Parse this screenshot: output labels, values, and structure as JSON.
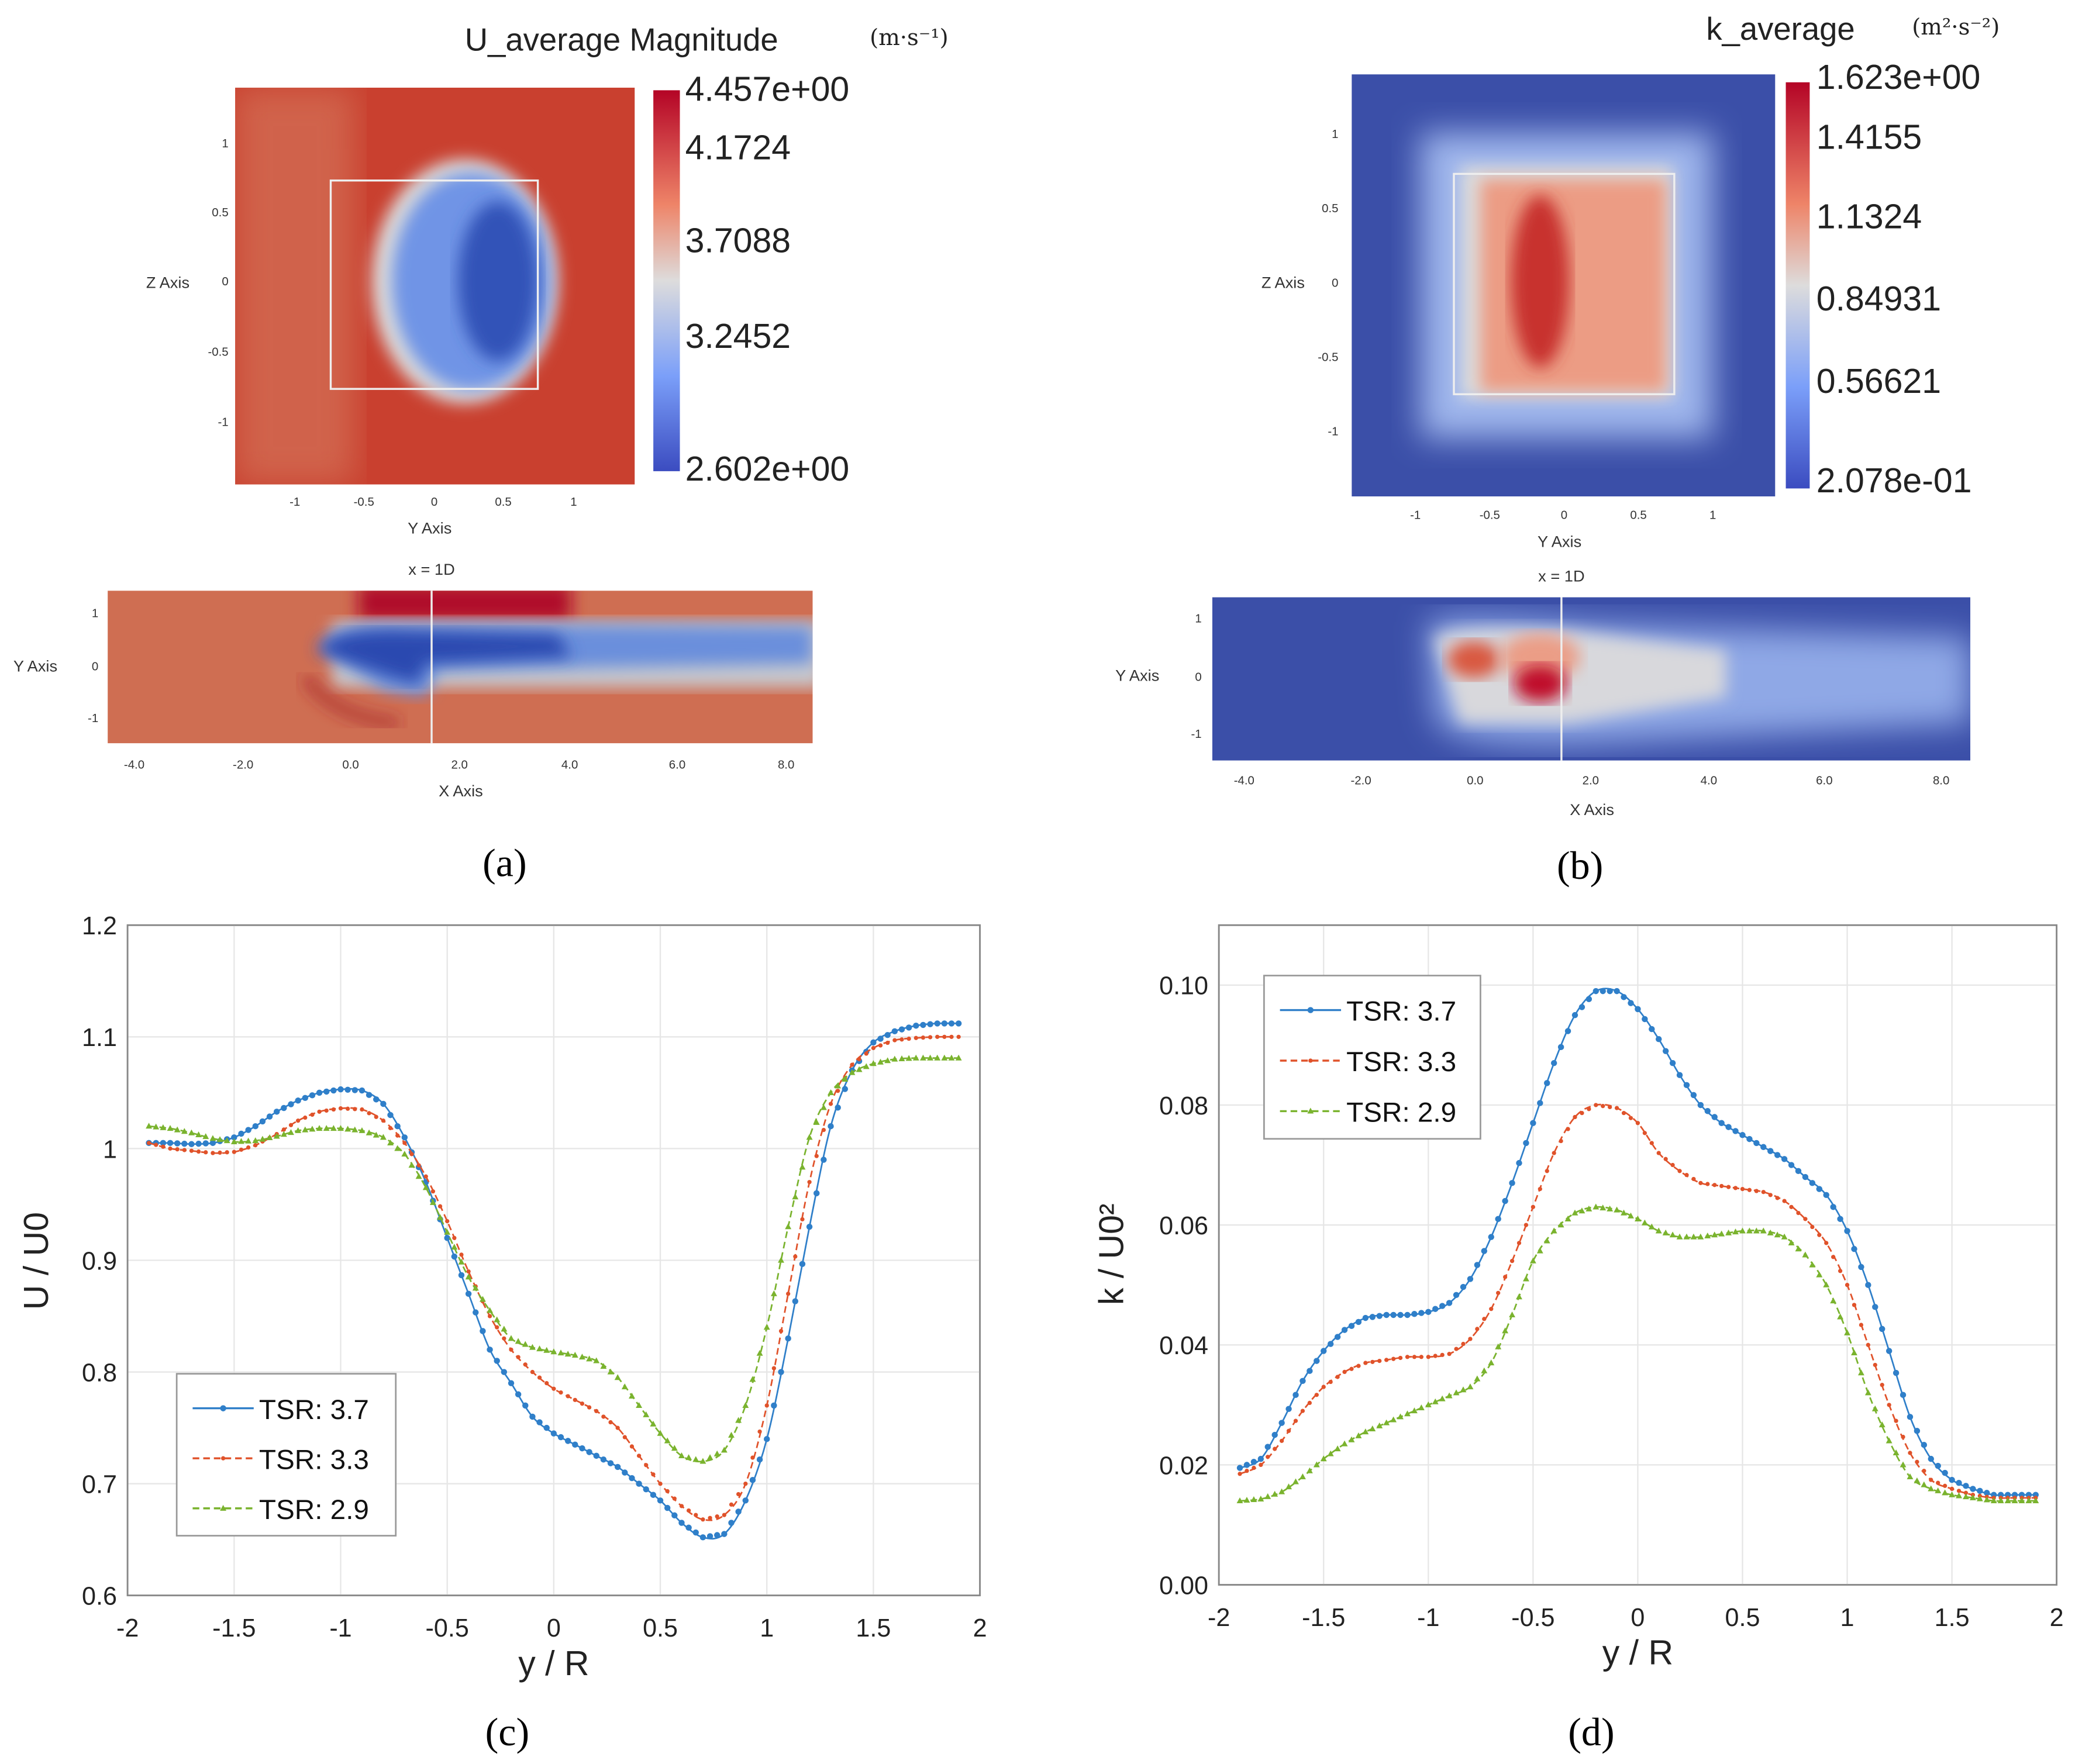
{
  "panel_a": {
    "title": "U_average Magnitude",
    "units": "(m·s⁻¹)",
    "colorbar_labels": [
      "4.457e+00",
      "4.1724",
      "3.7088",
      "3.2452",
      "2.602e+00"
    ],
    "top_yaxis_label": "Z Axis",
    "top_xaxis_label": "Y Axis",
    "top_y_ticks": [
      "1",
      "0.5",
      "0",
      "-0.5",
      "-1"
    ],
    "top_x_ticks": [
      "-1",
      "-0.5",
      "0",
      "0.5",
      "1"
    ],
    "bottom_annotation": "x = 1D",
    "bottom_yaxis_label": "Y Axis",
    "bottom_xaxis_label": "X Axis",
    "bottom_y_ticks": [
      "1",
      "0",
      "-1"
    ],
    "bottom_x_ticks": [
      "-4.0",
      "-2.0",
      "0.0",
      "2.0",
      "4.0",
      "6.0",
      "8.0"
    ],
    "caption": "(a)"
  },
  "panel_b": {
    "title": "k_average",
    "units": "(m²·s⁻²)",
    "colorbar_labels": [
      "1.623e+00",
      "1.4155",
      "1.1324",
      "0.84931",
      "0.56621",
      "2.078e-01"
    ],
    "top_yaxis_label": "Z Axis",
    "top_xaxis_label": "Y Axis",
    "top_y_ticks": [
      "1",
      "0.5",
      "0",
      "-0.5",
      "-1"
    ],
    "top_x_ticks": [
      "-1",
      "-0.5",
      "0",
      "0.5",
      "1"
    ],
    "bottom_annotation": "x = 1D",
    "bottom_yaxis_label": "Y Axis",
    "bottom_xaxis_label": "X Axis",
    "bottom_y_ticks": [
      "1",
      "0",
      "-1"
    ],
    "bottom_x_ticks": [
      "-4.0",
      "-2.0",
      "0.0",
      "2.0",
      "4.0",
      "6.0",
      "8.0"
    ],
    "caption": "(b)"
  },
  "colors": {
    "blue": "#2f7fc9",
    "red": "#e0522a",
    "green": "#7ab32e"
  },
  "chart_data": [
    {
      "type": "line",
      "caption": "(c)",
      "xlabel": "y / R",
      "ylabel": "U / U0",
      "xlim": [
        -2,
        2
      ],
      "ylim": [
        0.6,
        1.2
      ],
      "xticks": [
        "-2",
        "-1.5",
        "-1",
        "-0.5",
        "0",
        "0.5",
        "1",
        "1.5",
        "2"
      ],
      "yticks": [
        "0.6",
        "0.7",
        "0.8",
        "0.9",
        "1",
        "1.1",
        "1.2"
      ],
      "grid": true,
      "legend_position": "bottom-left",
      "x": [
        -1.9,
        -1.8,
        -1.7,
        -1.6,
        -1.5,
        -1.4,
        -1.3,
        -1.2,
        -1.1,
        -1.0,
        -0.9,
        -0.8,
        -0.7,
        -0.6,
        -0.5,
        -0.4,
        -0.3,
        -0.2,
        -0.1,
        0,
        0.1,
        0.2,
        0.3,
        0.4,
        0.5,
        0.6,
        0.7,
        0.8,
        0.9,
        1.0,
        1.1,
        1.2,
        1.3,
        1.4,
        1.5,
        1.6,
        1.7,
        1.8,
        1.9
      ],
      "series": [
        {
          "name": "TSR: 3.7",
          "marker": "circle",
          "values": [
            1.005,
            1.005,
            1.004,
            1.005,
            1.01,
            1.02,
            1.033,
            1.043,
            1.05,
            1.053,
            1.052,
            1.04,
            1.01,
            0.97,
            0.92,
            0.87,
            0.82,
            0.79,
            0.76,
            0.745,
            0.735,
            0.725,
            0.715,
            0.7,
            0.685,
            0.665,
            0.652,
            0.655,
            0.685,
            0.74,
            0.83,
            0.93,
            1.02,
            1.07,
            1.095,
            1.105,
            1.11,
            1.112,
            1.112
          ]
        },
        {
          "name": "TSR: 3.3",
          "marker": "star",
          "values": [
            1.005,
            1.0,
            0.998,
            0.996,
            0.997,
            1.003,
            1.013,
            1.025,
            1.033,
            1.036,
            1.035,
            1.025,
            1.005,
            0.975,
            0.935,
            0.89,
            0.85,
            0.82,
            0.8,
            0.785,
            0.775,
            0.765,
            0.75,
            0.725,
            0.7,
            0.68,
            0.668,
            0.672,
            0.7,
            0.77,
            0.87,
            0.97,
            1.04,
            1.075,
            1.09,
            1.097,
            1.099,
            1.1,
            1.1
          ]
        },
        {
          "name": "TSR: 2.9",
          "marker": "triangle",
          "values": [
            1.02,
            1.018,
            1.014,
            1.009,
            1.006,
            1.007,
            1.011,
            1.016,
            1.018,
            1.018,
            1.016,
            1.01,
            0.995,
            0.965,
            0.925,
            0.885,
            0.855,
            0.83,
            0.822,
            0.818,
            0.815,
            0.81,
            0.795,
            0.77,
            0.745,
            0.725,
            0.72,
            0.73,
            0.77,
            0.84,
            0.93,
            1.01,
            1.05,
            1.068,
            1.076,
            1.08,
            1.081,
            1.081,
            1.081
          ]
        }
      ]
    },
    {
      "type": "line",
      "caption": "(d)",
      "xlabel": "y / R",
      "ylabel": "k / U0²",
      "xlim": [
        -2,
        2
      ],
      "ylim": [
        0,
        0.11
      ],
      "xticks": [
        "-2",
        "-1.5",
        "-1",
        "-0.5",
        "0",
        "0.5",
        "1",
        "1.5",
        "2"
      ],
      "yticks": [
        "0.00",
        "0.02",
        "0.04",
        "0.06",
        "0.08",
        "0.10"
      ],
      "grid": true,
      "legend_position": "top-left",
      "x": [
        -1.9,
        -1.8,
        -1.7,
        -1.6,
        -1.5,
        -1.4,
        -1.3,
        -1.2,
        -1.1,
        -1.0,
        -0.9,
        -0.8,
        -0.7,
        -0.6,
        -0.5,
        -0.4,
        -0.3,
        -0.2,
        -0.1,
        0,
        0.1,
        0.2,
        0.3,
        0.4,
        0.5,
        0.6,
        0.7,
        0.8,
        0.9,
        1.0,
        1.1,
        1.2,
        1.3,
        1.4,
        1.5,
        1.6,
        1.7,
        1.8,
        1.9
      ],
      "series": [
        {
          "name": "TSR: 3.7",
          "marker": "circle",
          "values": [
            0.0195,
            0.021,
            0.027,
            0.034,
            0.039,
            0.0425,
            0.0445,
            0.045,
            0.045,
            0.0455,
            0.047,
            0.051,
            0.058,
            0.067,
            0.077,
            0.087,
            0.095,
            0.099,
            0.099,
            0.096,
            0.091,
            0.085,
            0.08,
            0.077,
            0.075,
            0.073,
            0.071,
            0.068,
            0.065,
            0.059,
            0.05,
            0.039,
            0.028,
            0.021,
            0.0175,
            0.016,
            0.015,
            0.015,
            0.015
          ]
        },
        {
          "name": "TSR: 3.3",
          "marker": "star",
          "values": [
            0.0185,
            0.02,
            0.024,
            0.029,
            0.033,
            0.0355,
            0.037,
            0.0375,
            0.038,
            0.038,
            0.0385,
            0.041,
            0.046,
            0.054,
            0.063,
            0.072,
            0.078,
            0.08,
            0.0795,
            0.077,
            0.072,
            0.069,
            0.067,
            0.0665,
            0.066,
            0.0655,
            0.064,
            0.061,
            0.057,
            0.05,
            0.04,
            0.03,
            0.022,
            0.0175,
            0.016,
            0.015,
            0.0145,
            0.0145,
            0.0145
          ]
        },
        {
          "name": "TSR: 2.9",
          "marker": "triangle",
          "values": [
            0.014,
            0.0143,
            0.0155,
            0.018,
            0.021,
            0.0235,
            0.0255,
            0.027,
            0.0285,
            0.03,
            0.0315,
            0.033,
            0.037,
            0.045,
            0.054,
            0.059,
            0.062,
            0.063,
            0.0625,
            0.061,
            0.059,
            0.058,
            0.058,
            0.0585,
            0.059,
            0.059,
            0.058,
            0.055,
            0.05,
            0.042,
            0.032,
            0.024,
            0.018,
            0.016,
            0.015,
            0.0145,
            0.014,
            0.014,
            0.014
          ]
        }
      ]
    }
  ]
}
